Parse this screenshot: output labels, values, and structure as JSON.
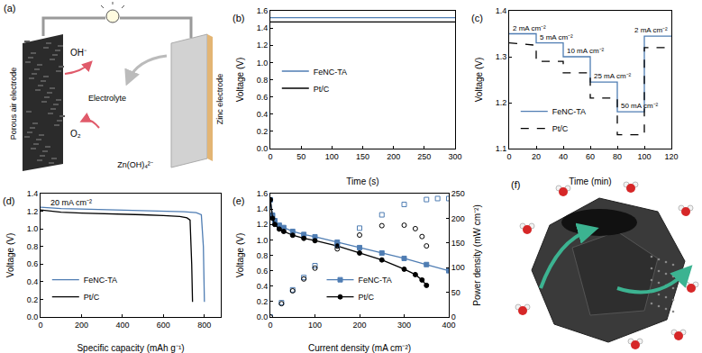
{
  "panel_a": {
    "label": "(a)",
    "air_electrode": "Porous air electrode",
    "hydroxide": "OH⁻",
    "oxygen": "O₂",
    "electrolyte": "Electrolyte",
    "zinc_electrode": "Zinc electrode",
    "zincate": "Zn(OH)₄²⁻"
  },
  "chart_data": [
    {
      "panel": "(b)",
      "type": "line",
      "x_label": "Time (s)",
      "y_label": "Voltage (V)",
      "xlim": [
        0,
        300
      ],
      "xticks": [
        0,
        50,
        100,
        150,
        200,
        250,
        300
      ],
      "ylim": [
        0,
        1.6
      ],
      "yticks": [
        {
          "value": 0,
          "label": "0.0"
        },
        0.2,
        0.4,
        0.6,
        0.8,
        {
          "value": 1,
          "label": "1.0"
        },
        1.2,
        1.4,
        1.6
      ],
      "grid": false,
      "legend": "center left",
      "series": [
        {
          "name": "FeNC-TA",
          "color": "#4f7db3",
          "line_style": "solid",
          "x": [
            0,
            300
          ],
          "values": [
            1.52,
            1.52
          ]
        },
        {
          "name": "Pt/C",
          "color": "#000000",
          "line_style": "solid",
          "x": [
            0,
            300
          ],
          "values": [
            1.47,
            1.47
          ]
        }
      ]
    },
    {
      "panel": "(c)",
      "type": "line",
      "x_label": "Time (min)",
      "y_label": "Voltage (V)",
      "xlim": [
        0,
        120
      ],
      "xticks": [
        0,
        20,
        40,
        60,
        80,
        100,
        120
      ],
      "ylim": [
        1.1,
        1.4
      ],
      "yticks": [
        1.1,
        1.2,
        1.3,
        1.4
      ],
      "grid": false,
      "legend": "lower left",
      "step_labels": [
        "2 mA cm⁻²",
        "5 mA cm⁻²",
        "10 mA cm⁻²",
        "25 mA cm⁻²",
        "50 mA cm⁻²",
        "2 mA cm⁻²"
      ],
      "series": [
        {
          "name": "FeNC-TA",
          "color": "#4f7db3",
          "line_style": "solid",
          "x": [
            0,
            20,
            20,
            40,
            40,
            60,
            60,
            80,
            80,
            100,
            100,
            120
          ],
          "values": [
            1.35,
            1.35,
            1.33,
            1.33,
            1.3,
            1.3,
            1.245,
            1.245,
            1.18,
            1.18,
            1.345,
            1.345
          ]
        },
        {
          "name": "Pt/C",
          "color": "#000000",
          "line_style": "dash",
          "x": [
            0,
            20,
            20,
            40,
            40,
            60,
            60,
            80,
            80,
            100,
            100,
            120
          ],
          "values": [
            1.33,
            1.325,
            1.29,
            1.29,
            1.265,
            1.265,
            1.21,
            1.21,
            1.13,
            1.13,
            1.32,
            1.32
          ]
        }
      ]
    },
    {
      "panel": "(d)",
      "type": "line",
      "x_label": "Specific capacity (mAh g⁻¹)",
      "y_label": "Voltage (V)",
      "xlim": [
        0,
        880
      ],
      "xticks": [
        0,
        200,
        400,
        600,
        800
      ],
      "ylim": [
        0,
        1.4
      ],
      "yticks": [
        {
          "value": 0,
          "label": "0.0"
        },
        0.2,
        0.4,
        0.6,
        0.8,
        {
          "value": 1,
          "label": "1.0"
        },
        1.2,
        1.4
      ],
      "grid": false,
      "legend": "lower left",
      "annotation": "20 mA cm⁻²",
      "series": [
        {
          "name": "FeNC-TA",
          "color": "#4f7db3",
          "line_style": "solid",
          "x": [
            0,
            50,
            100,
            200,
            300,
            400,
            500,
            600,
            700,
            760,
            785,
            795,
            800
          ],
          "values": [
            1.245,
            1.235,
            1.23,
            1.225,
            1.22,
            1.215,
            1.21,
            1.205,
            1.195,
            1.185,
            1.16,
            0.8,
            0.17
          ]
        },
        {
          "name": "Pt/C",
          "color": "#000000",
          "line_style": "solid",
          "x": [
            0,
            50,
            100,
            200,
            300,
            400,
            500,
            600,
            680,
            715,
            730,
            738,
            742
          ],
          "values": [
            1.215,
            1.2,
            1.19,
            1.18,
            1.175,
            1.17,
            1.16,
            1.15,
            1.14,
            1.125,
            1.1,
            0.6,
            0.17
          ]
        }
      ]
    },
    {
      "panel": "(e)",
      "type": "line",
      "x_label": "Current density (mA cm⁻²)",
      "y_label": "Voltage (V)",
      "y2_label": "Power density (mW cm⁻²)",
      "xlim": [
        0,
        400
      ],
      "xticks": [
        0,
        100,
        200,
        300,
        400
      ],
      "ylim": [
        0,
        1.6
      ],
      "yticks": [
        {
          "value": 0,
          "label": "0.0"
        },
        0.2,
        0.4,
        0.6,
        0.8,
        {
          "value": 1,
          "label": "1.0"
        },
        1.2,
        1.4,
        1.6
      ],
      "y2lim": [
        0,
        250
      ],
      "y2ticks": [
        0,
        50,
        100,
        150,
        200,
        250
      ],
      "grid": false,
      "legend": "lower center",
      "series": [
        {
          "name": "FeNC-TA",
          "color": "#4f7db3",
          "line_style": "solid",
          "marker": "square",
          "x": [
            0,
            5,
            10,
            20,
            30,
            50,
            75,
            100,
            150,
            200,
            250,
            300,
            350,
            400
          ],
          "values": [
            1.52,
            1.32,
            1.25,
            1.19,
            1.16,
            1.11,
            1.07,
            1.04,
            0.97,
            0.9,
            0.83,
            0.76,
            0.68,
            0.6
          ]
        },
        {
          "name": "FeNC-TA",
          "color": "#4f7db3",
          "line_style": "none",
          "marker": "square-open",
          "axis": "y2",
          "x": [
            0,
            25,
            50,
            75,
            100,
            150,
            200,
            250,
            300,
            350,
            375,
            400
          ],
          "values": [
            0,
            29,
            55,
            80,
            104,
            146,
            180,
            207,
            228,
            238,
            240,
            240
          ]
        },
        {
          "name": "Pt/C",
          "color": "#000000",
          "line_style": "solid",
          "marker": "circle",
          "x": [
            0,
            5,
            10,
            20,
            30,
            50,
            75,
            100,
            150,
            200,
            250,
            300,
            325,
            340,
            350
          ],
          "values": [
            1.52,
            1.28,
            1.2,
            1.14,
            1.11,
            1.06,
            1.02,
            0.99,
            0.92,
            0.83,
            0.74,
            0.62,
            0.55,
            0.48,
            0.41
          ]
        },
        {
          "name": "Pt/C",
          "color": "#000000",
          "line_style": "none",
          "marker": "circle-open",
          "axis": "y2",
          "x": [
            0,
            25,
            50,
            75,
            100,
            150,
            200,
            250,
            300,
            325,
            340,
            350
          ],
          "values": [
            0,
            27,
            53,
            77,
            99,
            138,
            166,
            185,
            186,
            179,
            163,
            144
          ]
        }
      ]
    }
  ],
  "panel_f": {
    "label": "(f)"
  }
}
